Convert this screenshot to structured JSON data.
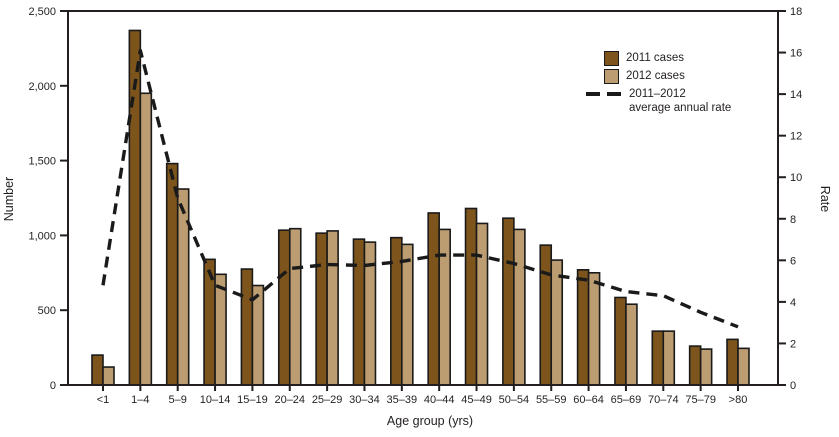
{
  "chart_data": {
    "type": "bar",
    "title": "",
    "xlabel": "Age group (yrs)",
    "ylabel_left": "Number",
    "ylabel_right": "Rate",
    "ylim_left": [
      0,
      2500
    ],
    "ylim_right": [
      0,
      18
    ],
    "grid": false,
    "legend_position": "upper-right-inside",
    "categories": [
      "<1",
      "1–4",
      "5–9",
      "10–14",
      "15–19",
      "20–24",
      "25–29",
      "30–34",
      "35–39",
      "40–44",
      "45–49",
      "50–54",
      "55–59",
      "60–64",
      "65–69",
      "70–74",
      "75–79",
      ">80"
    ],
    "left_axis_ticks": [
      {
        "value": 0,
        "label": "0"
      },
      {
        "value": 500,
        "label": "500"
      },
      {
        "value": 1000,
        "label": "1,000"
      },
      {
        "value": 1500,
        "label": "1,500"
      },
      {
        "value": 2000,
        "label": "2,000"
      },
      {
        "value": 2500,
        "label": "2,500"
      }
    ],
    "right_axis_ticks": [
      {
        "value": 0,
        "label": "0"
      },
      {
        "value": 2,
        "label": "2"
      },
      {
        "value": 4,
        "label": "4"
      },
      {
        "value": 6,
        "label": "6"
      },
      {
        "value": 8,
        "label": "8"
      },
      {
        "value": 10,
        "label": "10"
      },
      {
        "value": 12,
        "label": "12"
      },
      {
        "value": 14,
        "label": "14"
      },
      {
        "value": 16,
        "label": "16"
      },
      {
        "value": 18,
        "label": "18"
      }
    ],
    "series": [
      {
        "name": "2011 cases",
        "kind": "bar",
        "axis": "left",
        "color": "#7c541c",
        "values": [
          200,
          2370,
          1480,
          840,
          775,
          1035,
          1015,
          975,
          985,
          1150,
          1180,
          1115,
          935,
          770,
          585,
          360,
          260,
          305
        ]
      },
      {
        "name": "2012 cases",
        "kind": "bar",
        "axis": "left",
        "color": "#bc9d71",
        "values": [
          120,
          1950,
          1310,
          740,
          665,
          1045,
          1030,
          955,
          940,
          1040,
          1080,
          1040,
          835,
          750,
          540,
          360,
          240,
          245
        ]
      },
      {
        "name": "2011–2012 average annual rate",
        "kind": "dashed-line",
        "axis": "right",
        "color": "#1a1a1a",
        "values": [
          4.8,
          16.1,
          9.0,
          4.8,
          4.1,
          5.6,
          5.8,
          5.75,
          5.95,
          6.25,
          6.25,
          5.85,
          5.3,
          5.05,
          4.5,
          4.3,
          3.5,
          2.8
        ]
      }
    ]
  },
  "legend": {
    "item_2011": "2011 cases",
    "item_2012": "2012 cases",
    "item_rate_line1": "2011–2012",
    "item_rate_line2": "average annual rate"
  },
  "colors": {
    "bar_2011": "#7c541c",
    "bar_2012": "#bc9d71",
    "bar_outline": "#1a1a1a",
    "rate_line": "#1a1a1a",
    "axis": "#231f20",
    "background": "#ffffff"
  }
}
